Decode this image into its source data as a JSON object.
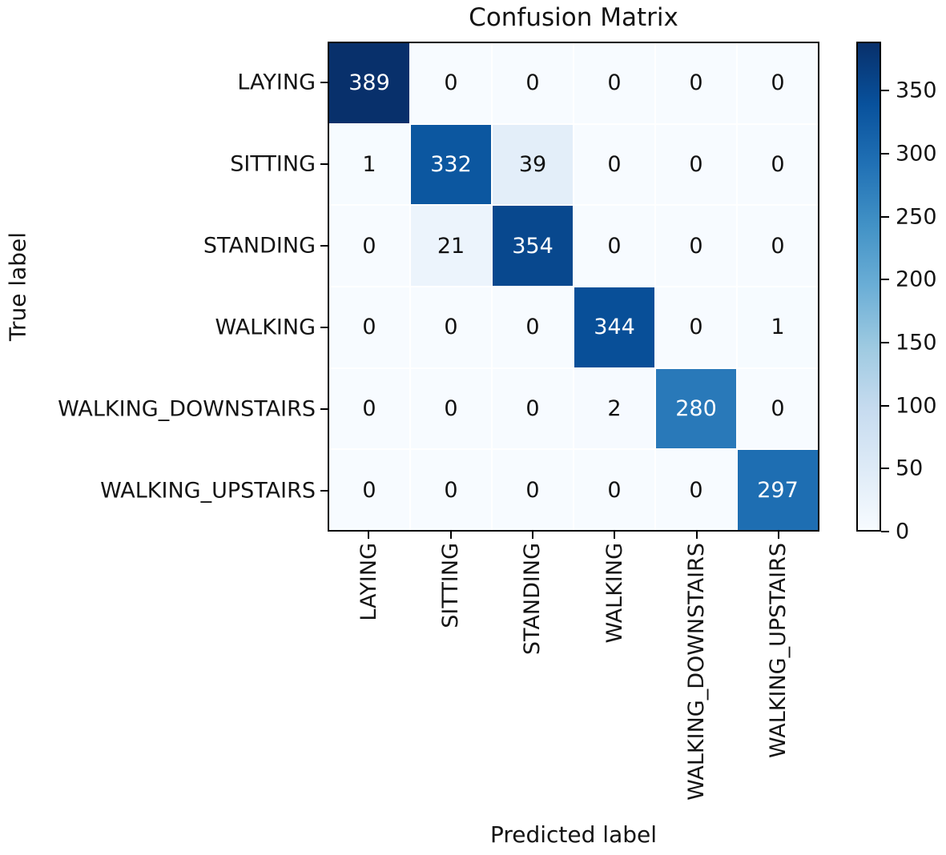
{
  "figure": {
    "title": "Confusion Matrix",
    "xlabel": "Predicted label",
    "ylabel": "True label"
  },
  "chart_data": {
    "type": "heatmap",
    "title": "Confusion Matrix",
    "xlabel": "Predicted label",
    "ylabel": "True label",
    "x_categories": [
      "LAYING",
      "SITTING",
      "STANDING",
      "WALKING",
      "WALKING_DOWNSTAIRS",
      "WALKING_UPSTAIRS"
    ],
    "y_categories": [
      "LAYING",
      "SITTING",
      "STANDING",
      "WALKING",
      "WALKING_DOWNSTAIRS",
      "WALKING_UPSTAIRS"
    ],
    "matrix": [
      [
        389,
        0,
        0,
        0,
        0,
        0
      ],
      [
        1,
        332,
        39,
        0,
        0,
        0
      ],
      [
        0,
        21,
        354,
        0,
        0,
        0
      ],
      [
        0,
        0,
        0,
        344,
        0,
        1
      ],
      [
        0,
        0,
        0,
        2,
        280,
        0
      ],
      [
        0,
        0,
        0,
        0,
        0,
        297
      ]
    ],
    "vmin": 0,
    "vmax": 389,
    "colormap": "Blues",
    "colormap_stops": [
      "#f7fbff",
      "#deebf7",
      "#c6dbef",
      "#9ecae1",
      "#6baed6",
      "#4292c6",
      "#2171b5",
      "#08519c",
      "#08306b"
    ],
    "colorbar_ticks": [
      0,
      50,
      100,
      150,
      200,
      250,
      300,
      350
    ],
    "cell_text_color_light": "#ffffff",
    "cell_text_color_dark": "#111111",
    "axis_color": "#000000",
    "grid": false,
    "legend_position": "right-colorbar"
  }
}
